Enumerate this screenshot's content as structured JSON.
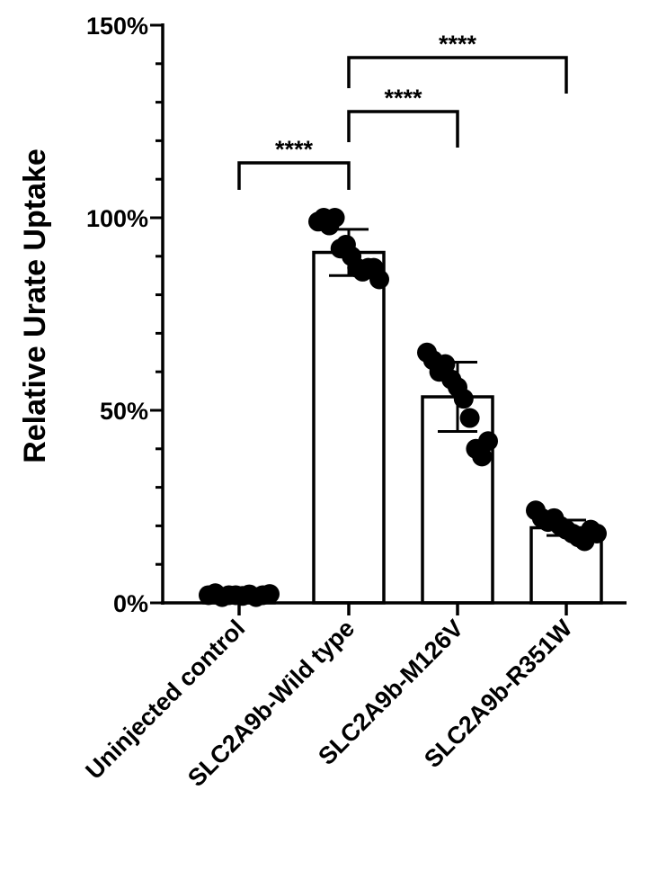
{
  "chart_data": {
    "type": "bar",
    "title": "",
    "xlabel": "",
    "ylabel": "Relative Urate Uptake",
    "ylim": [
      0,
      150
    ],
    "y_ticks": [
      {
        "value": 0,
        "label": "0%"
      },
      {
        "value": 50,
        "label": "50%"
      },
      {
        "value": 100,
        "label": "100%"
      },
      {
        "value": 150,
        "label": "150%"
      }
    ],
    "categories": [
      "Uninjected control",
      "SLC2A9b-Wild type",
      "SLC2A9b-M126V",
      "SLC2A9b-R351W"
    ],
    "values": [
      2,
      91,
      53.5,
      19.5
    ],
    "error": [
      1,
      6,
      9,
      2
    ],
    "points": [
      [
        2,
        2.5,
        1.5,
        2,
        2,
        1.8,
        2.2,
        1.5,
        2,
        2.3
      ],
      [
        99,
        100,
        98,
        100,
        92,
        93,
        90,
        87,
        86,
        87,
        87,
        84
      ],
      [
        65,
        63,
        60,
        62,
        58,
        56,
        53,
        48,
        40,
        38,
        42
      ],
      [
        24,
        22,
        21,
        22,
        20,
        19,
        18,
        17,
        16,
        19,
        18
      ]
    ],
    "significance": [
      {
        "from": 0,
        "to": 1,
        "label": "****"
      },
      {
        "from": 1,
        "to": 2,
        "label": "****"
      },
      {
        "from": 1,
        "to": 3,
        "label": "****"
      }
    ],
    "colors": {
      "bar_fill": "#ffffff",
      "bar_stroke": "#000000",
      "point": "#000000"
    },
    "grid": false,
    "legend": "none"
  }
}
